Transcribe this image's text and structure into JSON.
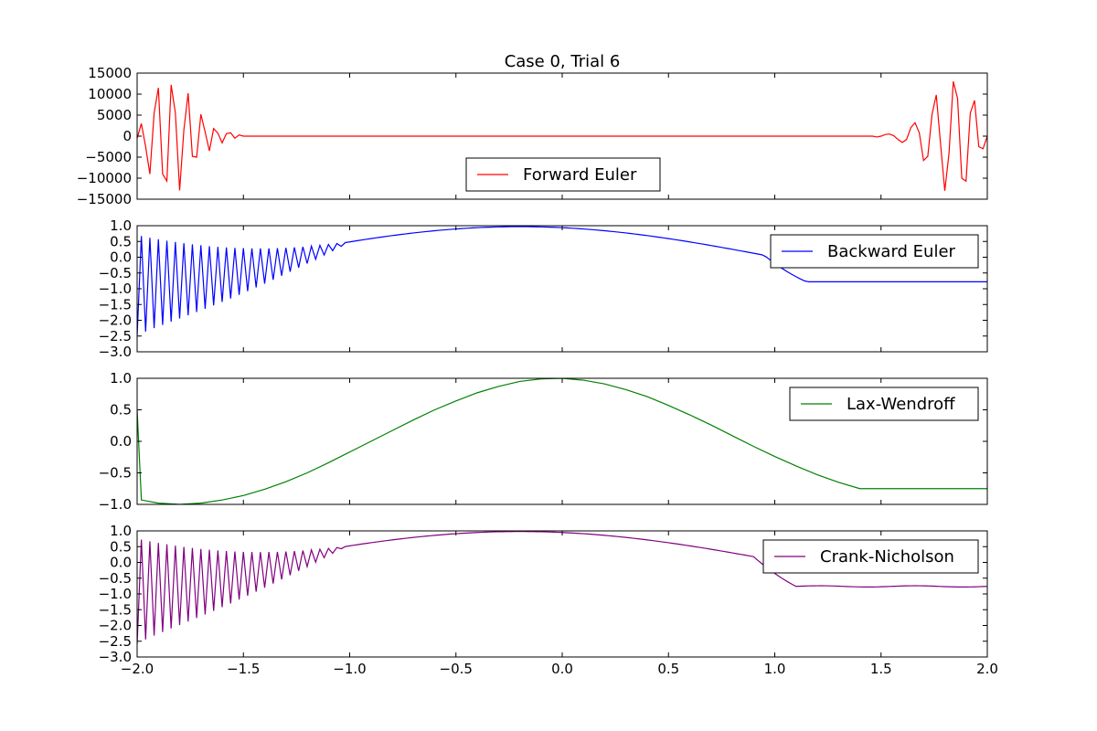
{
  "figure": {
    "title": "Case 0, Trial 6"
  },
  "chart_data": [
    {
      "type": "line",
      "title": "Case 0, Trial 6",
      "xlim": [
        -2.0,
        2.0
      ],
      "ylim": [
        -15000,
        15000
      ],
      "yticks": [
        "15000",
        "10000",
        "5000",
        "0",
        "−5000",
        "−10000",
        "−15000"
      ],
      "ytick_values": [
        15000,
        10000,
        5000,
        0,
        -5000,
        -10000,
        -15000
      ],
      "legend_position": "lower-center",
      "series": [
        {
          "name": "Forward Euler",
          "color": "#ff0000",
          "x": [
            -2.0,
            -1.98,
            -1.96,
            -1.94,
            -1.92,
            -1.9,
            -1.88,
            -1.86,
            -1.84,
            -1.82,
            -1.8,
            -1.78,
            -1.76,
            -1.74,
            -1.72,
            -1.7,
            -1.68,
            -1.66,
            -1.64,
            -1.62,
            -1.6,
            -1.58,
            -1.56,
            -1.54,
            -1.52,
            -1.5,
            -1.48,
            -1.46,
            1.44,
            1.46,
            1.48,
            1.5,
            1.52,
            1.54,
            1.56,
            1.58,
            1.6,
            1.62,
            1.64,
            1.66,
            1.68,
            1.7,
            1.72,
            1.74,
            1.76,
            1.78,
            1.8,
            1.82,
            1.84,
            1.86,
            1.88,
            1.9,
            1.92,
            1.94,
            1.96,
            1.98,
            2.0
          ],
          "y": [
            -500,
            3000,
            -2500,
            -9000,
            5500,
            11500,
            -9000,
            -10700,
            12200,
            5500,
            -12900,
            1500,
            10200,
            -4800,
            -5000,
            5200,
            1000,
            -3500,
            1800,
            700,
            -1600,
            600,
            800,
            -500,
            300,
            0,
            0,
            0,
            0,
            0,
            -200,
            0,
            400,
            500,
            100,
            -800,
            -1500,
            -800,
            2000,
            3200,
            800,
            -5800,
            -4800,
            5200,
            9800,
            -1800,
            -13000,
            -4000,
            13000,
            9000,
            -10000,
            -10700,
            5500,
            8500,
            -2500,
            -3000,
            0
          ]
        }
      ]
    },
    {
      "type": "line",
      "xlim": [
        -2.0,
        2.0
      ],
      "ylim": [
        -3.0,
        1.0
      ],
      "yticks": [
        "1.0",
        "0.5",
        "0.0",
        "−0.5",
        "−1.0",
        "−1.5",
        "−2.0",
        "−2.5",
        "−3.0"
      ],
      "ytick_values": [
        1.0,
        0.5,
        0.0,
        -0.5,
        -1.0,
        -1.5,
        -2.0,
        -2.5,
        -3.0
      ],
      "legend_position": "upper-right",
      "series": [
        {
          "name": "Backward Euler",
          "color": "#0000ff",
          "envelope": {
            "x_start": -2.0,
            "x_end": -1.0,
            "step": 0.02,
            "low_start": -2.5,
            "high_start": 0.7,
            "converge_to_smooth": true
          },
          "smooth": {
            "kind": "sine-then-flat",
            "amplitude": 0.97,
            "center": -0.2,
            "half_period": 1.2,
            "flat_from": 1.15,
            "flat_value": -0.78
          }
        }
      ]
    },
    {
      "type": "line",
      "xlim": [
        -2.0,
        2.0
      ],
      "ylim": [
        -1.0,
        1.0
      ],
      "yticks": [
        "1.0",
        "0.5",
        "0.0",
        "−0.5",
        "−1.0"
      ],
      "ytick_values": [
        1.0,
        0.5,
        0.0,
        -0.5,
        -1.0
      ],
      "legend_position": "upper-right",
      "series": [
        {
          "name": "Lax-Wendroff",
          "color": "#008000",
          "x": [
            -2.0,
            -1.98,
            -1.9,
            -1.8,
            -1.7,
            -1.6,
            -1.5,
            -1.4,
            -1.3,
            -1.2,
            -1.1,
            -1.0,
            -0.9,
            -0.8,
            -0.7,
            -0.6,
            -0.5,
            -0.4,
            -0.3,
            -0.2,
            -0.1,
            0.0,
            0.1,
            0.2,
            0.3,
            0.4,
            0.5,
            0.6,
            0.7,
            0.8,
            0.9,
            1.0,
            1.1,
            1.2,
            1.3,
            1.4,
            1.5,
            1.6,
            1.7,
            1.8,
            1.9,
            2.0
          ],
          "y": [
            0.5,
            -0.93,
            -0.98,
            -1.0,
            -0.98,
            -0.93,
            -0.86,
            -0.76,
            -0.64,
            -0.5,
            -0.34,
            -0.17,
            0.0,
            0.17,
            0.34,
            0.5,
            0.64,
            0.77,
            0.87,
            0.95,
            0.99,
            1.0,
            0.97,
            0.91,
            0.82,
            0.71,
            0.57,
            0.42,
            0.26,
            0.09,
            -0.08,
            -0.24,
            -0.39,
            -0.53,
            -0.65,
            -0.75,
            -0.75,
            -0.75,
            -0.75,
            -0.75,
            -0.75,
            -0.75
          ]
        }
      ]
    },
    {
      "type": "line",
      "xlim": [
        -2.0,
        2.0
      ],
      "ylim": [
        -3.0,
        1.0
      ],
      "yticks": [
        "1.0",
        "0.5",
        "0.0",
        "−0.5",
        "−1.0",
        "−1.5",
        "−2.0",
        "−2.5",
        "−3.0"
      ],
      "ytick_values": [
        1.0,
        0.5,
        0.0,
        -0.5,
        -1.0,
        -1.5,
        -2.0,
        -2.5,
        -3.0
      ],
      "xticks": [
        "−2.0",
        "−1.5",
        "−1.0",
        "−0.5",
        "0.0",
        "0.5",
        "1.0",
        "1.5",
        "2.0"
      ],
      "xtick_values": [
        -2.0,
        -1.5,
        -1.0,
        -0.5,
        0.0,
        0.5,
        1.0,
        1.5,
        2.0
      ],
      "legend_position": "upper-right",
      "series": [
        {
          "name": "Crank-Nicholson",
          "color": "#800080",
          "envelope": {
            "x_start": -2.0,
            "x_end": -1.02,
            "step": 0.02,
            "low_start": -2.6,
            "high_start": 0.75,
            "converge_to_smooth": true
          },
          "smooth": {
            "kind": "sine-then-flat",
            "amplitude": 0.98,
            "center": -0.2,
            "half_period": 1.25,
            "flat_from": 1.1,
            "flat_value": -0.76,
            "ripple": true
          }
        }
      ]
    }
  ]
}
